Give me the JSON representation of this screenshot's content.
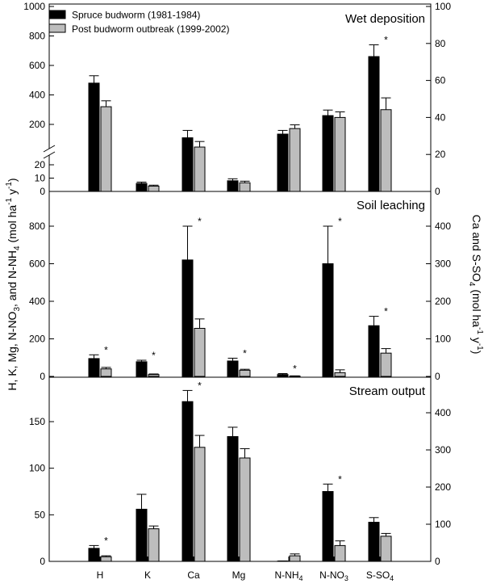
{
  "chart_data": {
    "type": "bar",
    "categories": [
      "H",
      "K",
      "Ca",
      "Mg",
      "N-NH4",
      "N-NO3",
      "S-SO4"
    ],
    "category_labels": [
      {
        "base": "H",
        "sub": ""
      },
      {
        "base": "K",
        "sub": ""
      },
      {
        "base": "Ca",
        "sub": ""
      },
      {
        "base": "Mg",
        "sub": ""
      },
      {
        "base": "N-NH",
        "sub": "4"
      },
      {
        "base": "N-NO",
        "sub": "3"
      },
      {
        "base": "S-SO",
        "sub": "4"
      }
    ],
    "legend": [
      {
        "name": "Spruce budworm (1981-1984)",
        "color": "#000000"
      },
      {
        "name": "Post budworm outbreak (1999-2002)",
        "color": "#bdbdbd"
      }
    ],
    "left_axis_label": {
      "prefix": "H, K, Mg, N-NO",
      "sub1": "3",
      "mid": ", and N-NH",
      "sub2": "4",
      "mid2": " (mol ha",
      "sup1": "-1",
      "mid3": " y",
      "sup2": "-1",
      "suffix": ")"
    },
    "right_axis_label": {
      "prefix": "Ca and S-SO",
      "sub1": "4",
      "mid": " (mol ha",
      "sup1": "-1",
      "mid2": " y",
      "sup2": "-1",
      "suffix": ")"
    },
    "asterisk": "*",
    "panels": [
      {
        "title": "Wet deposition",
        "left_upper_ticks": [
          "200",
          "400",
          "600",
          "800",
          "1000"
        ],
        "left_upper_range": [
          0,
          1000
        ],
        "left_lower_ticks": [
          "0",
          "10",
          "20"
        ],
        "left_lower_range": [
          0,
          20
        ],
        "right_ticks": [
          "0",
          "20",
          "40",
          "60",
          "80",
          "100"
        ],
        "right_range": [
          0,
          100
        ],
        "series": [
          {
            "name": "Spruce budworm (1981-1984)",
            "values": [
              480,
              6,
              29,
              8,
              31,
              41,
              660
            ],
            "errors": [
              50,
              1,
              4,
              1.5,
              2,
              3,
              80
            ],
            "axis": [
              "left",
              "left",
              "right",
              "left",
              "right",
              "right",
              "left"
            ]
          },
          {
            "name": "Post budworm outbreak (1999-2002)",
            "values": [
              320,
              4,
              24,
              6.5,
              34,
              40,
              300
            ],
            "errors": [
              40,
              0.7,
              3,
              1.2,
              2,
              3,
              80
            ],
            "axis": [
              "left",
              "left",
              "right",
              "left",
              "right",
              "right",
              "left"
            ]
          }
        ],
        "significant": [
          false,
          false,
          false,
          false,
          false,
          false,
          true
        ]
      },
      {
        "title": "Soil leaching",
        "left_ticks": [
          "0",
          "200",
          "400",
          "600",
          "800"
        ],
        "left_range": [
          0,
          900
        ],
        "right_ticks": [
          "0",
          "100",
          "200",
          "300",
          "400"
        ],
        "right_range": [
          0,
          450
        ],
        "series": [
          {
            "name": "Spruce budworm (1981-1984)",
            "values": [
              95,
              78,
              310,
              82,
              10,
              600,
              135
            ],
            "errors": [
              20,
              8,
              90,
              15,
              5,
              200,
              25
            ],
            "axis": [
              "left",
              "left",
              "right",
              "left",
              "left",
              "left",
              "right"
            ]
          },
          {
            "name": "Post budworm outbreak (1999-2002)",
            "values": [
              40,
              10,
              128,
              33,
              2,
              20,
              62
            ],
            "errors": [
              8,
              3,
              25,
              5,
              1,
              15,
              12
            ],
            "axis": [
              "left",
              "left",
              "right",
              "left",
              "left",
              "left",
              "right"
            ]
          }
        ],
        "significant": [
          true,
          true,
          true,
          true,
          true,
          true,
          true
        ]
      },
      {
        "title": "Stream output",
        "left_ticks": [
          "0",
          "50",
          "100",
          "150"
        ],
        "left_range": [
          0,
          175
        ],
        "right_ticks": [
          "0",
          "100",
          "200",
          "300",
          "400"
        ],
        "right_range": [
          0,
          466.67
        ],
        "series": [
          {
            "name": "Spruce budworm (1981-1984)",
            "values": [
              14,
              56,
              430,
              134,
              0.3,
              75,
              42
            ],
            "errors": [
              3,
              16,
              30,
              10,
              0.2,
              8,
              5
            ],
            "axis": [
              "left",
              "left",
              "right",
              "left",
              "left",
              "left",
              "left"
            ]
          },
          {
            "name": "Post budworm outbreak (1999-2002)",
            "values": [
              5,
              35,
              307,
              111,
              6,
              17,
              27
            ],
            "errors": [
              1,
              3,
              32,
              10,
              2,
              5,
              3
            ],
            "axis": [
              "left",
              "left",
              "right",
              "left",
              "left",
              "left",
              "left"
            ]
          }
        ],
        "significant": [
          true,
          false,
          true,
          false,
          false,
          true,
          false
        ]
      }
    ]
  }
}
